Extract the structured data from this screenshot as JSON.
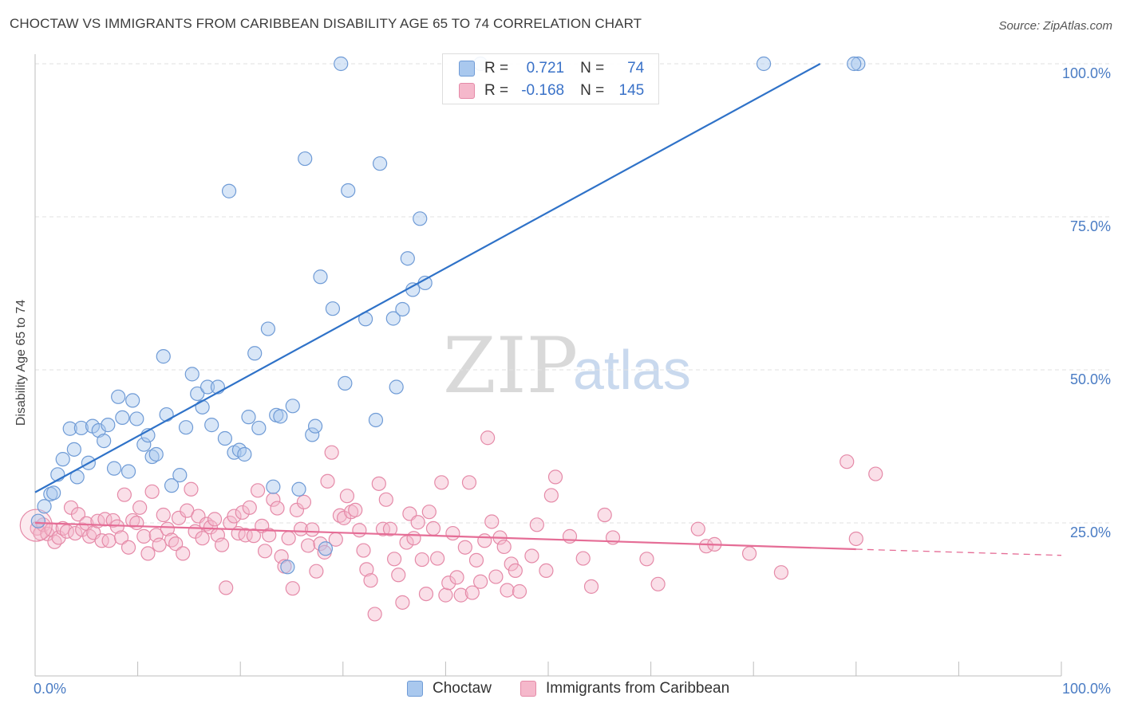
{
  "title": "CHOCTAW VS IMMIGRANTS FROM CARIBBEAN DISABILITY AGE 65 TO 74 CORRELATION CHART",
  "source": "Source: ZipAtlas.com",
  "watermark": {
    "zip": "ZIP",
    "atlas": "atlas"
  },
  "colors": {
    "blue_fill": "#a9c8ee",
    "blue_stroke": "#6f9bd6",
    "blue_line": "#2f72c8",
    "pink_fill": "#f5b8cb",
    "pink_stroke": "#e58aa8",
    "pink_line": "#e56d96",
    "tick_text": "#4a7cc4",
    "grid": "#e2e2e2"
  },
  "legend": {
    "rows": [
      {
        "r_label": "R =",
        "r_value": "0.721",
        "n_label": "N =",
        "n_value": "74"
      },
      {
        "r_label": "R =",
        "r_value": "-0.168",
        "n_label": "N =",
        "n_value": "145"
      }
    ]
  },
  "bottom_legend": [
    "Choctaw",
    "Immigrants from Caribbean"
  ],
  "chart_data": {
    "type": "scatter",
    "title": "CHOCTAW VS IMMIGRANTS FROM CARIBBEAN DISABILITY AGE 65 TO 74 CORRELATION CHART",
    "xlabel": "",
    "ylabel": "Disability Age 65 to 74",
    "xlim": [
      0,
      100
    ],
    "ylim": [
      0,
      100
    ],
    "x_tick_labels": [
      "0.0%",
      "100.0%"
    ],
    "y_ticks": [
      25,
      50,
      75,
      100
    ],
    "y_tick_labels": [
      "25.0%",
      "50.0%",
      "75.0%",
      "100.0%"
    ],
    "grid": true,
    "legend_position": "top-center",
    "series": [
      {
        "name": "Choctaw",
        "color": "#6f9bd6",
        "trend": {
          "x": [
            0,
            76.5
          ],
          "y": [
            30.0,
            100.0
          ]
        },
        "points": [
          [
            0.3,
            25.3
          ],
          [
            0.9,
            27.7
          ],
          [
            1.5,
            29.7
          ],
          [
            1.8,
            29.9
          ],
          [
            2.2,
            32.9
          ],
          [
            2.7,
            35.4
          ],
          [
            3.4,
            40.4
          ],
          [
            3.8,
            37.0
          ],
          [
            4.1,
            32.5
          ],
          [
            4.5,
            40.5
          ],
          [
            5.2,
            34.8
          ],
          [
            5.6,
            40.8
          ],
          [
            6.2,
            40.1
          ],
          [
            6.7,
            38.4
          ],
          [
            7.1,
            41.0
          ],
          [
            7.7,
            33.9
          ],
          [
            8.1,
            45.6
          ],
          [
            8.5,
            42.2
          ],
          [
            9.1,
            33.4
          ],
          [
            9.5,
            45.0
          ],
          [
            9.9,
            42.0
          ],
          [
            10.6,
            37.8
          ],
          [
            11.0,
            39.3
          ],
          [
            11.4,
            35.8
          ],
          [
            11.8,
            36.2
          ],
          [
            12.5,
            52.2
          ],
          [
            12.8,
            42.7
          ],
          [
            13.3,
            31.1
          ],
          [
            14.1,
            32.8
          ],
          [
            14.7,
            40.6
          ],
          [
            15.3,
            49.3
          ],
          [
            15.8,
            46.1
          ],
          [
            16.3,
            43.9
          ],
          [
            16.8,
            47.2
          ],
          [
            17.2,
            41.0
          ],
          [
            17.8,
            47.2
          ],
          [
            18.5,
            38.8
          ],
          [
            18.9,
            79.2
          ],
          [
            19.4,
            36.5
          ],
          [
            19.9,
            36.9
          ],
          [
            20.4,
            36.2
          ],
          [
            20.8,
            42.3
          ],
          [
            21.4,
            52.7
          ],
          [
            21.8,
            40.5
          ],
          [
            22.7,
            56.7
          ],
          [
            23.2,
            30.9
          ],
          [
            23.5,
            42.6
          ],
          [
            23.9,
            42.4
          ],
          [
            24.6,
            17.8
          ],
          [
            25.1,
            44.1
          ],
          [
            25.7,
            30.5
          ],
          [
            26.3,
            84.5
          ],
          [
            27.0,
            39.4
          ],
          [
            27.3,
            40.8
          ],
          [
            27.8,
            65.2
          ],
          [
            28.3,
            20.8
          ],
          [
            29.0,
            60.0
          ],
          [
            29.8,
            100
          ],
          [
            30.2,
            47.8
          ],
          [
            30.5,
            79.3
          ],
          [
            32.2,
            58.3
          ],
          [
            33.2,
            41.8
          ],
          [
            33.6,
            83.7
          ],
          [
            34.9,
            58.4
          ],
          [
            35.2,
            47.2
          ],
          [
            35.8,
            59.9
          ],
          [
            36.3,
            68.2
          ],
          [
            36.8,
            63.1
          ],
          [
            37.5,
            74.7
          ],
          [
            38.0,
            64.2
          ],
          [
            43.4,
            100
          ],
          [
            71.0,
            100
          ],
          [
            80.2,
            100
          ],
          [
            79.8,
            100
          ]
        ]
      },
      {
        "name": "Immigrants from Caribbean",
        "color": "#e58aa8",
        "trend": {
          "x": [
            0,
            80
          ],
          "y": [
            25.0,
            20.7
          ]
        },
        "trend_dashed": {
          "x": [
            80,
            100
          ],
          "y": [
            20.7,
            19.7
          ]
        },
        "points": [
          [
            0.2,
            24.1
          ],
          [
            0.5,
            23.3
          ],
          [
            0.8,
            24.7
          ],
          [
            1.2,
            23.2
          ],
          [
            1.6,
            23.9
          ],
          [
            1.9,
            21.9
          ],
          [
            2.3,
            22.6
          ],
          [
            2.7,
            24.1
          ],
          [
            3.1,
            23.6
          ],
          [
            3.5,
            27.5
          ],
          [
            3.9,
            23.3
          ],
          [
            4.2,
            26.4
          ],
          [
            4.6,
            23.9
          ],
          [
            5.0,
            24.9
          ],
          [
            5.3,
            22.8
          ],
          [
            5.7,
            23.4
          ],
          [
            6.1,
            25.3
          ],
          [
            6.5,
            22.1
          ],
          [
            6.8,
            25.6
          ],
          [
            7.2,
            22.1
          ],
          [
            7.6,
            25.4
          ],
          [
            8.0,
            24.4
          ],
          [
            8.4,
            22.6
          ],
          [
            8.7,
            29.6
          ],
          [
            9.1,
            21.0
          ],
          [
            9.5,
            25.4
          ],
          [
            9.9,
            25.0
          ],
          [
            10.2,
            27.5
          ],
          [
            10.6,
            22.8
          ],
          [
            11.0,
            20.0
          ],
          [
            11.4,
            30.1
          ],
          [
            11.8,
            23.0
          ],
          [
            12.1,
            21.4
          ],
          [
            12.5,
            26.3
          ],
          [
            12.9,
            24.0
          ],
          [
            13.3,
            22.2
          ],
          [
            13.7,
            21.6
          ],
          [
            14.0,
            25.8
          ],
          [
            14.4,
            20.0
          ],
          [
            14.8,
            27.0
          ],
          [
            15.2,
            30.5
          ],
          [
            15.6,
            23.6
          ],
          [
            15.9,
            26.1
          ],
          [
            16.3,
            22.5
          ],
          [
            16.7,
            24.8
          ],
          [
            17.1,
            24.3
          ],
          [
            17.5,
            25.6
          ],
          [
            17.8,
            23.0
          ],
          [
            18.2,
            21.4
          ],
          [
            18.6,
            14.4
          ],
          [
            19.0,
            25.0
          ],
          [
            19.4,
            26.1
          ],
          [
            19.8,
            23.3
          ],
          [
            20.2,
            26.7
          ],
          [
            20.5,
            23.0
          ],
          [
            20.9,
            27.5
          ],
          [
            21.3,
            22.9
          ],
          [
            21.7,
            30.3
          ],
          [
            22.1,
            24.5
          ],
          [
            22.4,
            20.4
          ],
          [
            22.8,
            23.0
          ],
          [
            23.2,
            28.8
          ],
          [
            23.6,
            27.4
          ],
          [
            24.0,
            19.5
          ],
          [
            24.3,
            17.9
          ],
          [
            24.7,
            22.5
          ],
          [
            25.1,
            14.3
          ],
          [
            25.5,
            27.1
          ],
          [
            25.9,
            24.0
          ],
          [
            26.2,
            28.4
          ],
          [
            26.6,
            21.3
          ],
          [
            27.0,
            23.9
          ],
          [
            27.4,
            17.1
          ],
          [
            27.8,
            21.6
          ],
          [
            28.2,
            20.2
          ],
          [
            28.5,
            31.8
          ],
          [
            28.9,
            36.5
          ],
          [
            29.3,
            22.3
          ],
          [
            29.7,
            26.2
          ],
          [
            30.1,
            25.8
          ],
          [
            30.4,
            29.4
          ],
          [
            30.8,
            26.8
          ],
          [
            31.2,
            27.1
          ],
          [
            31.6,
            23.8
          ],
          [
            32.0,
            20.5
          ],
          [
            32.3,
            17.4
          ],
          [
            32.7,
            15.6
          ],
          [
            33.1,
            10.1
          ],
          [
            33.5,
            31.4
          ],
          [
            33.9,
            24.0
          ],
          [
            34.2,
            28.8
          ],
          [
            34.6,
            24.0
          ],
          [
            35.0,
            19.1
          ],
          [
            35.4,
            16.5
          ],
          [
            35.8,
            12.0
          ],
          [
            36.2,
            21.8
          ],
          [
            36.5,
            26.5
          ],
          [
            36.9,
            22.5
          ],
          [
            37.3,
            25.1
          ],
          [
            37.7,
            19.0
          ],
          [
            38.1,
            13.4
          ],
          [
            38.4,
            26.8
          ],
          [
            38.8,
            24.1
          ],
          [
            39.2,
            19.2
          ],
          [
            39.6,
            31.6
          ],
          [
            40.0,
            13.2
          ],
          [
            40.3,
            15.2
          ],
          [
            40.7,
            23.3
          ],
          [
            41.1,
            16.1
          ],
          [
            41.5,
            13.2
          ],
          [
            41.9,
            21.0
          ],
          [
            42.3,
            31.6
          ],
          [
            42.6,
            13.6
          ],
          [
            43.0,
            18.9
          ],
          [
            43.4,
            15.4
          ],
          [
            43.8,
            22.1
          ],
          [
            44.1,
            38.9
          ],
          [
            44.5,
            25.2
          ],
          [
            44.9,
            16.2
          ],
          [
            45.3,
            22.6
          ],
          [
            45.7,
            21.1
          ],
          [
            46.0,
            14.0
          ],
          [
            46.4,
            18.3
          ],
          [
            46.8,
            17.2
          ],
          [
            47.2,
            13.8
          ],
          [
            48.4,
            19.6
          ],
          [
            49.8,
            17.2
          ],
          [
            50.3,
            29.5
          ],
          [
            55.5,
            26.3
          ],
          [
            56.3,
            22.6
          ],
          [
            59.6,
            19.1
          ],
          [
            65.4,
            21.2
          ],
          [
            66.2,
            21.5
          ],
          [
            69.6,
            20.0
          ],
          [
            72.7,
            16.9
          ],
          [
            79.1,
            35.0
          ],
          [
            80.0,
            22.4
          ],
          [
            81.9,
            33.0
          ],
          [
            64.6,
            24.0
          ],
          [
            60.7,
            15.0
          ],
          [
            48.9,
            24.7
          ],
          [
            50.7,
            32.5
          ],
          [
            52.1,
            22.8
          ],
          [
            53.4,
            19.2
          ],
          [
            54.2,
            14.6
          ]
        ]
      }
    ]
  }
}
